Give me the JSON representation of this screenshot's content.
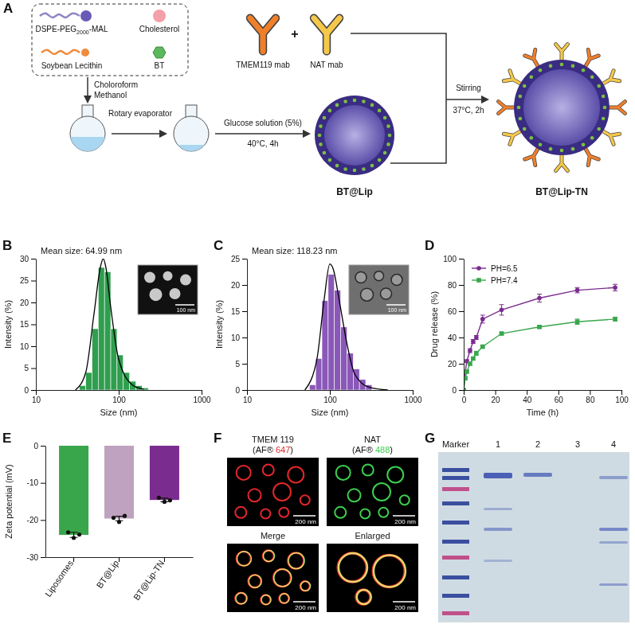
{
  "schematic": {
    "panel": "A",
    "components": {
      "lipid": {
        "prefix": "DSPE-PEG",
        "subscript": "2000",
        "suffix": "-MAL"
      },
      "cholesterol": "Cholesterol",
      "lecithin": "Soybean Lecithin",
      "drug": "BT"
    },
    "solvent": [
      "Choloroform",
      "Methanol"
    ],
    "step1": "Rotary evaporator",
    "step2": [
      "Glucose solution (5%)",
      "40°C, 4h"
    ],
    "antibodies": [
      {
        "name": "TMEM119 mab",
        "color": "#f07f2a"
      },
      {
        "name": "NAT mab",
        "color": "#f5c84a"
      }
    ],
    "plus": "+",
    "step3": [
      "Stirring",
      "37°C, 2h"
    ],
    "product1": "BT@Lip",
    "product2": "BT@Lip-TN"
  },
  "chart_data": [
    {
      "panel": "B",
      "type": "histogram",
      "annotation": "Mean size: 64.99 nm",
      "inset_scale_bar": "100 nm",
      "x_label": "Size (nm)",
      "y_label": "Intensity (%)",
      "log": "x",
      "xlim": [
        10,
        1000
      ],
      "xticks": [
        10,
        100,
        1000
      ],
      "ylim": [
        0,
        30
      ],
      "yticks": [
        0,
        5,
        10,
        15,
        20,
        25,
        30
      ],
      "bins": [
        33.6,
        40,
        47.6,
        56.6,
        67.4,
        80.2,
        95.4,
        113.5,
        135.1,
        160.8,
        191.3,
        227.6
      ],
      "values": [
        1,
        4,
        14,
        28,
        27,
        14,
        8,
        4,
        2,
        1,
        0.5
      ],
      "color": "#2f9e4f",
      "fit": {
        "x": [
          30,
          40,
          50,
          60,
          65,
          70,
          80,
          100,
          150,
          200
        ],
        "values": [
          0,
          4,
          17,
          28,
          30,
          28,
          19,
          7,
          1,
          0.2
        ],
        "color": "#000000"
      }
    },
    {
      "panel": "C",
      "type": "histogram",
      "annotation": "Mean size: 118.23 nm",
      "inset_scale_bar": "100 nm",
      "x_label": "Size (nm)",
      "y_label": "Intensity (%)",
      "log": "x",
      "xlim": [
        10,
        1000
      ],
      "xticks": [
        10,
        100,
        1000
      ],
      "ylim": [
        0,
        25
      ],
      "yticks": [
        0,
        5,
        10,
        15,
        20,
        25
      ],
      "bins": [
        56.6,
        67.4,
        80.2,
        95.4,
        113.5,
        135.1,
        160.8,
        191.3,
        227.6,
        270.8,
        322.3
      ],
      "values": [
        1,
        6,
        17,
        22,
        19,
        12,
        7,
        4,
        2,
        1
      ],
      "color": "#8a58b8",
      "fit": {
        "x": [
          50,
          70,
          85,
          100,
          110,
          130,
          160,
          200,
          300,
          500
        ],
        "values": [
          0,
          6,
          17,
          24,
          23,
          17,
          9,
          3,
          0.5,
          0
        ],
        "color": "#000000"
      }
    },
    {
      "panel": "D",
      "type": "line",
      "x_label": "Time (h)",
      "y_label": "Drug release (%)",
      "x": [
        0,
        1,
        2,
        4,
        6,
        8,
        12,
        24,
        48,
        72,
        96
      ],
      "xlim": [
        0,
        100
      ],
      "xticks": [
        0,
        20,
        40,
        60,
        80,
        100
      ],
      "ylim": [
        0,
        100
      ],
      "yticks": [
        0,
        20,
        40,
        60,
        80,
        100
      ],
      "legend": "upper left",
      "series": [
        {
          "name": "PH=6.5",
          "color": "#7b2c8f",
          "marker": "circle",
          "values": [
            0,
            14,
            22,
            30,
            37,
            40,
            54,
            61,
            70,
            76,
            78
          ],
          "errors": [
            0,
            1,
            1,
            1.5,
            1.5,
            1.5,
            3,
            4,
            3,
            2,
            2.5
          ]
        },
        {
          "name": "PH=7.4",
          "color": "#3aa64c",
          "marker": "square",
          "values": [
            0,
            9,
            14,
            20,
            24,
            28,
            33,
            43,
            48,
            52,
            54
          ],
          "errors": [
            0,
            1,
            1,
            1,
            1,
            1.5,
            1,
            1,
            1,
            2,
            1.5
          ]
        }
      ]
    },
    {
      "panel": "E",
      "type": "bar",
      "y_label": "Zeta potential (mV)",
      "categories": [
        "Liposomes",
        "BT@Lip",
        "BT@Lip-TN"
      ],
      "values": [
        -24,
        -19.6,
        -14.6
      ],
      "errors": [
        0.7,
        0.6,
        0.5
      ],
      "points": [
        [
          -23.3,
          -24.8,
          -23.9
        ],
        [
          -19.4,
          -20.5,
          -18.9
        ],
        [
          -14.0,
          -15.1,
          -14.7
        ]
      ],
      "colors": [
        "#3aa64c",
        "#bfa2bf",
        "#7b2c8f"
      ],
      "ylim": [
        -30,
        0
      ],
      "yticks": [
        -30,
        -20,
        -10,
        0
      ]
    }
  ],
  "images": {
    "panel": "F",
    "scale_bar": "200 nm",
    "tiles": [
      {
        "title": "TMEM 119",
        "channel": [
          "(AF® ",
          "647",
          ")"
        ],
        "color": "#e3262b"
      },
      {
        "title": "NAT",
        "channel": [
          "(AF® ",
          "488",
          ")"
        ],
        "color": "#3ccf4e"
      },
      {
        "title": "Merge"
      },
      {
        "title": "Enlarged"
      }
    ]
  },
  "gel": {
    "panel": "G",
    "lanes": [
      "Marker",
      "1",
      "2",
      "3",
      "4"
    ]
  }
}
